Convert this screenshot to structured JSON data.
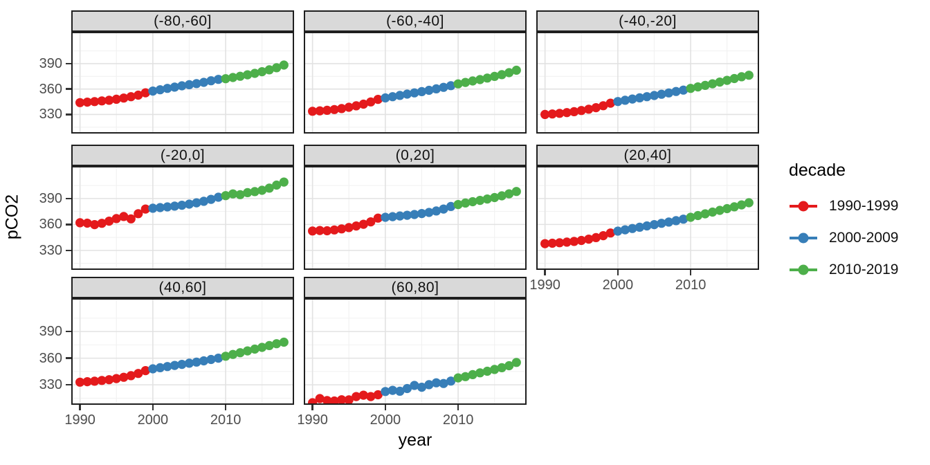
{
  "figure": {
    "x_axis_title": "year",
    "y_axis_title": "pCO2"
  },
  "legend": {
    "title": "decade"
  },
  "chart_data": {
    "type": "scatter",
    "title": "",
    "xlabel": "year",
    "ylabel": "pCO2",
    "legend_title": "decade",
    "legend_position": "right",
    "grid": "on",
    "x_ticks": [
      1990,
      2000,
      2010
    ],
    "y_ticks": [
      330,
      360,
      390
    ],
    "x_minor_ticks": [
      1995,
      2005,
      2015
    ],
    "y_minor_ticks": [
      315,
      345,
      375,
      405
    ],
    "xlim": [
      1988.8,
      2019.4
    ],
    "ylim": [
      307.5,
      427.5
    ],
    "years": [
      1990,
      1991,
      1992,
      1993,
      1994,
      1995,
      1996,
      1997,
      1998,
      1999,
      2000,
      2001,
      2002,
      2003,
      2004,
      2005,
      2006,
      2007,
      2008,
      2009,
      2010,
      2011,
      2012,
      2013,
      2014,
      2015,
      2016,
      2017,
      2018
    ],
    "decades": [
      {
        "name": "1990-1999",
        "color": "#E41A1C",
        "start_year": 1990,
        "end_year": 1999
      },
      {
        "name": "2000-2009",
        "color": "#377EB8",
        "start_year": 2000,
        "end_year": 2009
      },
      {
        "name": "2010-2019",
        "color": "#4DAF4A",
        "start_year": 2010,
        "end_year": 2019
      }
    ],
    "facets": [
      {
        "label": "(-80,-60]",
        "values": [
          344.0,
          344.6,
          345.2,
          346.0,
          346.8,
          348.0,
          349.4,
          351.0,
          352.8,
          355.6,
          357.6,
          359.2,
          360.8,
          362.3,
          363.8,
          365.1,
          366.4,
          367.9,
          369.8,
          371.4,
          372.2,
          373.6,
          375.1,
          376.8,
          378.5,
          380.5,
          382.7,
          385.1,
          388.3
        ]
      },
      {
        "label": "(-60,-40]",
        "values": [
          333.8,
          334.3,
          334.9,
          335.8,
          337.0,
          338.5,
          340.2,
          342.2,
          344.8,
          347.8,
          349.5,
          351.0,
          352.5,
          354.0,
          355.5,
          357.0,
          358.5,
          360.2,
          362.0,
          364.0,
          366.1,
          367.8,
          369.5,
          371.2,
          373.0,
          374.9,
          377.0,
          379.3,
          382.2
        ]
      },
      {
        "label": "(-40,-20]",
        "values": [
          330.0,
          330.6,
          331.3,
          332.2,
          333.3,
          334.7,
          336.2,
          338.0,
          340.3,
          343.3,
          345.3,
          346.8,
          348.2,
          349.6,
          351.0,
          352.4,
          353.9,
          355.4,
          357.1,
          358.8,
          360.8,
          362.5,
          364.3,
          366.2,
          368.2,
          370.3,
          372.4,
          374.5,
          376.3
        ]
      },
      {
        "label": "(-20,0]",
        "values": [
          362.0,
          361.5,
          359.8,
          361.3,
          363.8,
          366.8,
          369.2,
          366.5,
          372.5,
          377.8,
          378.8,
          379.5,
          380.3,
          381.2,
          382.2,
          383.5,
          385.0,
          386.8,
          389.0,
          391.5,
          393.3,
          395.3,
          394.5,
          396.8,
          398.0,
          399.5,
          402.0,
          405.5,
          409.0
        ]
      },
      {
        "label": "(0,20]",
        "values": [
          352.5,
          353.0,
          352.7,
          353.7,
          354.9,
          356.4,
          358.2,
          360.2,
          363.0,
          367.3,
          368.3,
          369.0,
          369.8,
          370.6,
          371.5,
          372.6,
          373.9,
          375.6,
          377.8,
          380.8,
          383.0,
          384.8,
          386.3,
          387.8,
          389.4,
          391.1,
          393.1,
          395.4,
          398.1
        ]
      },
      {
        "label": "(20,40]",
        "values": [
          337.8,
          338.3,
          338.9,
          339.6,
          340.4,
          341.5,
          343.0,
          344.8,
          347.0,
          350.1,
          352.3,
          353.8,
          355.3,
          356.8,
          358.3,
          359.8,
          361.3,
          362.8,
          364.4,
          366.1,
          368.3,
          370.3,
          372.3,
          374.3,
          376.3,
          378.3,
          380.4,
          382.6,
          385.1
        ]
      },
      {
        "label": "(40,60]",
        "values": [
          333.0,
          333.5,
          334.1,
          334.9,
          335.8,
          337.0,
          338.5,
          340.3,
          342.8,
          346.0,
          348.0,
          349.3,
          350.6,
          351.8,
          353.0,
          354.3,
          355.6,
          357.0,
          358.5,
          360.0,
          362.2,
          364.2,
          366.2,
          368.2,
          370.2,
          372.2,
          374.2,
          376.3,
          378.0
        ]
      },
      {
        "label": "(60,80]",
        "values": [
          309.8,
          314.5,
          312.3,
          311.8,
          313.2,
          313.0,
          316.8,
          318.3,
          316.8,
          318.8,
          322.5,
          323.8,
          322.8,
          325.8,
          329.3,
          327.3,
          330.2,
          332.3,
          331.5,
          334.2,
          337.8,
          339.2,
          341.5,
          343.5,
          345.3,
          347.3,
          349.3,
          351.5,
          355.2
        ]
      }
    ]
  }
}
